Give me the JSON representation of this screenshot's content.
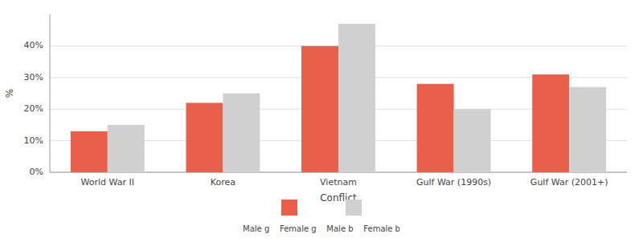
{
  "chart_data": {
    "type": "bar",
    "xlabel": "Conflict",
    "ylabel": "%",
    "annotations": [
      "Male g    Female g    Male b    Female b"
    ],
    "categories": [
      "World War II",
      "Korea",
      "Vietnam",
      "Gulf War (1990s)",
      "Gulf War (2001+)"
    ],
    "series": [
      {
        "color": "#e8604c",
        "values": [
          13,
          22,
          40,
          28,
          31
        ]
      },
      {
        "color": "#d0d0d0",
        "values": [
          15,
          25,
          47,
          20,
          27
        ]
      }
    ],
    "ylim": [
      0,
      50
    ],
    "yticks": [
      {
        "value": 0,
        "label": "0%"
      },
      {
        "value": 10,
        "label": "10%"
      },
      {
        "value": 20,
        "label": "20%"
      },
      {
        "value": 30,
        "label": "30%"
      },
      {
        "value": 40,
        "label": "40%"
      }
    ],
    "grid": true
  }
}
